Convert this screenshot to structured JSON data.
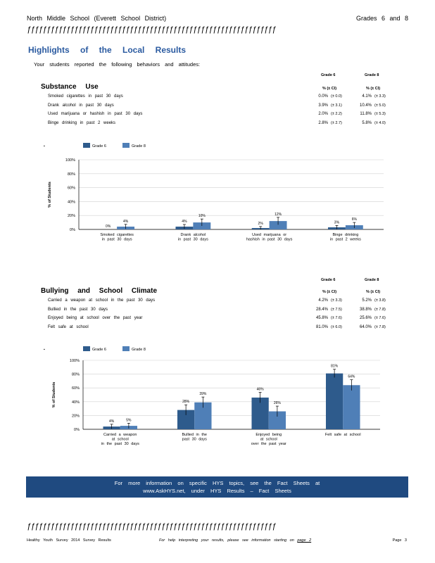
{
  "header": {
    "left": "North Middle School (Everett School District)",
    "right": "Grades 6 and 8",
    "rule": "ƒƒƒƒƒƒƒƒƒƒƒƒƒƒƒƒƒƒƒƒƒƒƒƒƒƒƒƒƒƒƒƒƒƒƒƒƒƒƒƒƒƒƒƒƒƒƒƒƒƒƒƒƒƒƒƒƒƒƒƒƒƒƒ"
  },
  "title": "Highlights of the Local Results",
  "intro": "Your students reported the following behaviors and attitudes:",
  "colors": {
    "grade6": "#2e5b8c",
    "grade8": "#4f7fb7",
    "accent": "#2a5aa0"
  },
  "substance": {
    "title": "Substance Use",
    "grade6_head": "Grade 6",
    "grade8_head": "Grade 8",
    "pct_head": "% (± CI)",
    "rows": [
      {
        "label": "Smoked cigarettes in past 30 days",
        "g6": "0.0%",
        "g6ci": "(± 0.0)",
        "g8": "4.1%",
        "g8ci": "(± 3.3)"
      },
      {
        "label": "Drank alcohol in past 30 days",
        "g6": "3.9%",
        "g6ci": "(± 3.1)",
        "g8": "10.4%",
        "g8ci": "(± 5.0)"
      },
      {
        "label": "Used marijuana or hashish in past 30 days",
        "g6": "2.0%",
        "g6ci": "(± 2.2)",
        "g8": "11.8%",
        "g8ci": "(± 5.3)"
      },
      {
        "label": "Binge drinking in past 2 weeks",
        "g6": "2.8%",
        "g6ci": "(± 2.7)",
        "g8": "5.8%",
        "g8ci": "(± 4.0)"
      }
    ]
  },
  "bullying": {
    "title": "Bullying and School Climate",
    "grade6_head": "Grade 6",
    "grade8_head": "Grade 8",
    "pct_head": "% (± CI)",
    "rows": [
      {
        "label": "Carried a weapon at school in the past 30 days",
        "g6": "4.2%",
        "g6ci": "(± 3.3)",
        "g8": "5.2%",
        "g8ci": "(± 3.8)"
      },
      {
        "label": "Bullied in the past 30 days",
        "g6": "28.4%",
        "g6ci": "(± 7.5)",
        "g8": "38.8%",
        "g8ci": "(± 7.8)"
      },
      {
        "label": "Enjoyed being at school over the past year",
        "g6": "45.8%",
        "g6ci": "(± 7.6)",
        "g8": "25.6%",
        "g8ci": "(± 7.6)"
      },
      {
        "label": "Felt safe at school",
        "g6": "81.0%",
        "g6ci": "(± 6.0)",
        "g8": "64.0%",
        "g8ci": "(± 7.8)"
      }
    ]
  },
  "chart_data": [
    {
      "type": "bar",
      "ylabel": "% of Students",
      "ylim": [
        0,
        100
      ],
      "yticks": [
        "0%",
        "20%",
        "40%",
        "60%",
        "80%",
        "100%"
      ],
      "categories": [
        [
          "Smoked cigarettes",
          "in past 30 days"
        ],
        [
          "Drank alcohol",
          "in past 30 days"
        ],
        [
          "Used marijuana or",
          "hashish in past 30 days"
        ],
        [
          "Binge drinking",
          "in past 2 weeks"
        ]
      ],
      "series": [
        {
          "name": "Grade 6",
          "values": [
            0,
            4,
            2,
            3
          ],
          "ci": [
            0,
            3.1,
            2.2,
            2.7
          ],
          "labels": [
            "0%",
            "4%",
            "2%",
            "3%"
          ]
        },
        {
          "name": "Grade 8",
          "values": [
            4,
            10,
            12,
            6
          ],
          "ci": [
            3.3,
            5.0,
            5.3,
            4.0
          ],
          "labels": [
            "4%",
            "10%",
            "12%",
            "6%"
          ]
        }
      ],
      "legend": "top-left"
    },
    {
      "type": "bar",
      "ylabel": "% of Students",
      "ylim": [
        0,
        100
      ],
      "yticks": [
        "0%",
        "20%",
        "40%",
        "60%",
        "80%",
        "100%"
      ],
      "categories": [
        [
          "Carried a weapon",
          "at school",
          "in the past 30 days"
        ],
        [
          "Bullied in the",
          "past 30 days"
        ],
        [
          "Enjoyed being",
          "at school",
          "over the past year"
        ],
        [
          "Felt safe at school"
        ]
      ],
      "series": [
        {
          "name": "Grade 6",
          "values": [
            4,
            28,
            46,
            81
          ],
          "ci": [
            3.3,
            7.5,
            7.6,
            6.0
          ],
          "labels": [
            "4%",
            "28%",
            "46%",
            "81%"
          ]
        },
        {
          "name": "Grade 8",
          "values": [
            5,
            39,
            26,
            64
          ],
          "ci": [
            3.8,
            7.8,
            7.6,
            7.8
          ],
          "labels": [
            "5%",
            "39%",
            "26%",
            "64%"
          ]
        }
      ],
      "legend": "top-left"
    }
  ],
  "banner": {
    "line1": "For more information on specific HYS topics, see the Fact Sheets at",
    "line2": "www.AskHYS.net, under HYS Results – Fact Sheets"
  },
  "footer": {
    "left": "Healthy Youth Survey 2014 Survey Results",
    "center_text": "For help interpreting your results, please see information starting on",
    "center_link": "page 2",
    "right": "Page 3"
  }
}
